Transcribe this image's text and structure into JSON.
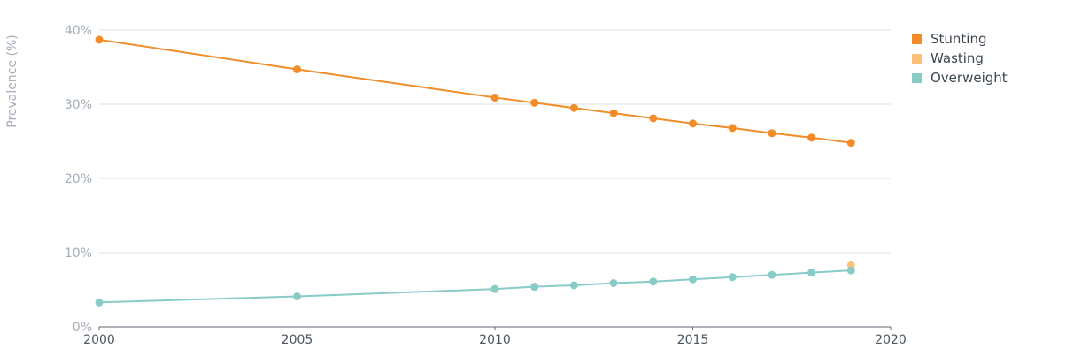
{
  "chart_data": {
    "type": "line",
    "ylabel": "Prevalence (%)",
    "xlabel": "",
    "xlim": [
      2000,
      2020
    ],
    "ylim": [
      0,
      40
    ],
    "x_ticks": [
      "2000",
      "2005",
      "2010",
      "2015",
      "2020"
    ],
    "y_ticks": [
      "0%",
      "10%",
      "20%",
      "30%",
      "40%"
    ],
    "grid": "horizontal",
    "legend_position": "top-right",
    "series": [
      {
        "name": "Stunting",
        "color": "#f28c28",
        "points": [
          {
            "x": 2000,
            "y": 38.7
          },
          {
            "x": 2005,
            "y": 34.7
          },
          {
            "x": 2010,
            "y": 30.9
          },
          {
            "x": 2011,
            "y": 30.2
          },
          {
            "x": 2012,
            "y": 29.5
          },
          {
            "x": 2013,
            "y": 28.8
          },
          {
            "x": 2014,
            "y": 28.1
          },
          {
            "x": 2015,
            "y": 27.4
          },
          {
            "x": 2016,
            "y": 26.8
          },
          {
            "x": 2017,
            "y": 26.1
          },
          {
            "x": 2018,
            "y": 25.5
          },
          {
            "x": 2019,
            "y": 24.8
          }
        ]
      },
      {
        "name": "Wasting",
        "color": "#fbc178",
        "points": [
          {
            "x": 2019,
            "y": 8.3
          }
        ]
      },
      {
        "name": "Overweight",
        "color": "#88cbc7",
        "points": [
          {
            "x": 2000,
            "y": 3.3
          },
          {
            "x": 2005,
            "y": 4.1
          },
          {
            "x": 2010,
            "y": 5.1
          },
          {
            "x": 2011,
            "y": 5.4
          },
          {
            "x": 2012,
            "y": 5.6
          },
          {
            "x": 2013,
            "y": 5.9
          },
          {
            "x": 2014,
            "y": 6.1
          },
          {
            "x": 2015,
            "y": 6.4
          },
          {
            "x": 2016,
            "y": 6.7
          },
          {
            "x": 2017,
            "y": 7.0
          },
          {
            "x": 2018,
            "y": 7.3
          },
          {
            "x": 2019,
            "y": 7.6
          }
        ]
      }
    ]
  }
}
